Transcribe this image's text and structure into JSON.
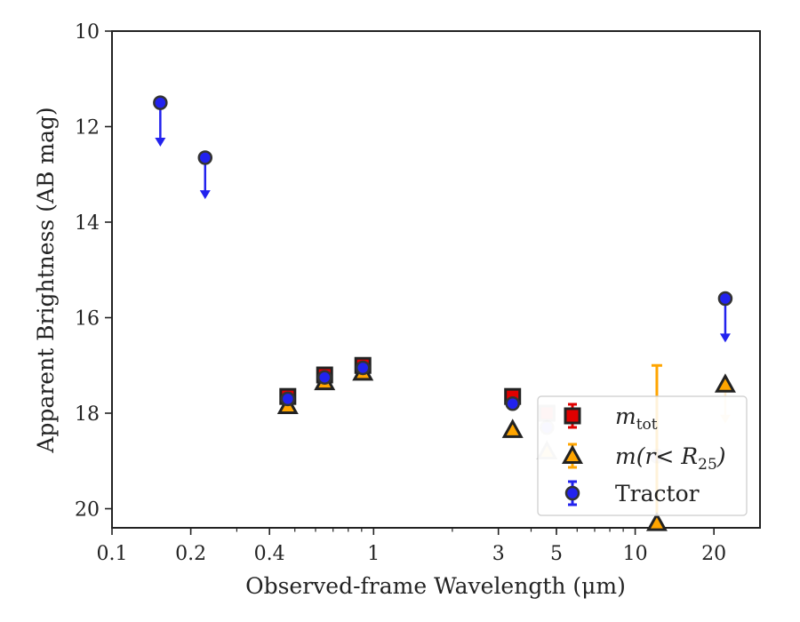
{
  "chart_data": {
    "type": "scatter",
    "xlabel": "Observed-frame Wavelength (μm)",
    "ylabel": "Apparent Brightness (AB mag)",
    "xscale": "log",
    "xlim": [
      0.1,
      30
    ],
    "ylim": [
      20.4,
      10
    ],
    "y_inverted": true,
    "grid": false,
    "legend_placement": "lower-right",
    "x_ticks": [
      {
        "value": 0.1,
        "label": "0.1"
      },
      {
        "value": 0.2,
        "label": "0.2"
      },
      {
        "value": 0.4,
        "label": "0.4"
      },
      {
        "value": 1,
        "label": "1"
      },
      {
        "value": 3,
        "label": "3"
      },
      {
        "value": 5,
        "label": "5"
      },
      {
        "value": 10,
        "label": "10"
      },
      {
        "value": 20,
        "label": "20"
      }
    ],
    "y_ticks": [
      {
        "value": 10,
        "label": "10"
      },
      {
        "value": 12,
        "label": "12"
      },
      {
        "value": 14,
        "label": "14"
      },
      {
        "value": 16,
        "label": "16"
      },
      {
        "value": 18,
        "label": "18"
      },
      {
        "value": 20,
        "label": "20"
      }
    ],
    "series": [
      {
        "name": "m_tot",
        "legend_base": "m",
        "legend_sub": "tot",
        "marker": "square",
        "face_color": "#e00000",
        "edge_color": "#222222",
        "err_color": "#e00000",
        "points": [
          {
            "x": 0.47,
            "y": 17.65,
            "alpha": 1
          },
          {
            "x": 0.65,
            "y": 17.2,
            "alpha": 1
          },
          {
            "x": 0.91,
            "y": 17.0,
            "alpha": 1
          },
          {
            "x": 3.4,
            "y": 17.65,
            "alpha": 1
          },
          {
            "x": 4.6,
            "y": 18.0,
            "alpha": 0.25
          }
        ]
      },
      {
        "name": "m(r<R25)",
        "legend_base": "m(r< R",
        "legend_sub": "25",
        "legend_tail": ")",
        "marker": "triangle",
        "face_color": "#ffa500",
        "edge_color": "#222222",
        "err_color": "#ffa500",
        "points": [
          {
            "x": 0.47,
            "y": 17.85,
            "alpha": 1
          },
          {
            "x": 0.65,
            "y": 17.35,
            "alpha": 1
          },
          {
            "x": 0.91,
            "y": 17.15,
            "alpha": 1
          },
          {
            "x": 3.4,
            "y": 18.35,
            "alpha": 1
          },
          {
            "x": 4.6,
            "y": 18.8,
            "alpha": 0.25
          },
          {
            "x": 12.1,
            "y": 20.3,
            "alpha": 1,
            "err_upper": 17.0
          },
          {
            "x": 22.1,
            "y": 17.4,
            "alpha": 1,
            "limit_to": 18.2,
            "limit_alpha": 0.2
          }
        ]
      },
      {
        "name": "Tractor",
        "marker": "circle",
        "face_color": "#2222ee",
        "edge_color": "#333333",
        "err_color": "#2222ee",
        "points": [
          {
            "x": 0.153,
            "y": 11.5,
            "alpha": 1,
            "limit_to": 12.4
          },
          {
            "x": 0.227,
            "y": 12.65,
            "alpha": 1,
            "limit_to": 13.5
          },
          {
            "x": 0.47,
            "y": 17.7,
            "alpha": 1
          },
          {
            "x": 0.65,
            "y": 17.25,
            "alpha": 1
          },
          {
            "x": 0.91,
            "y": 17.05,
            "alpha": 1
          },
          {
            "x": 3.4,
            "y": 17.8,
            "alpha": 1
          },
          {
            "x": 4.6,
            "y": 18.3,
            "alpha": 0.2
          },
          {
            "x": 12.1,
            "y": 18.9,
            "alpha": 0.2
          },
          {
            "x": 22.1,
            "y": 15.6,
            "alpha": 1,
            "limit_to": 16.5
          }
        ]
      }
    ]
  }
}
